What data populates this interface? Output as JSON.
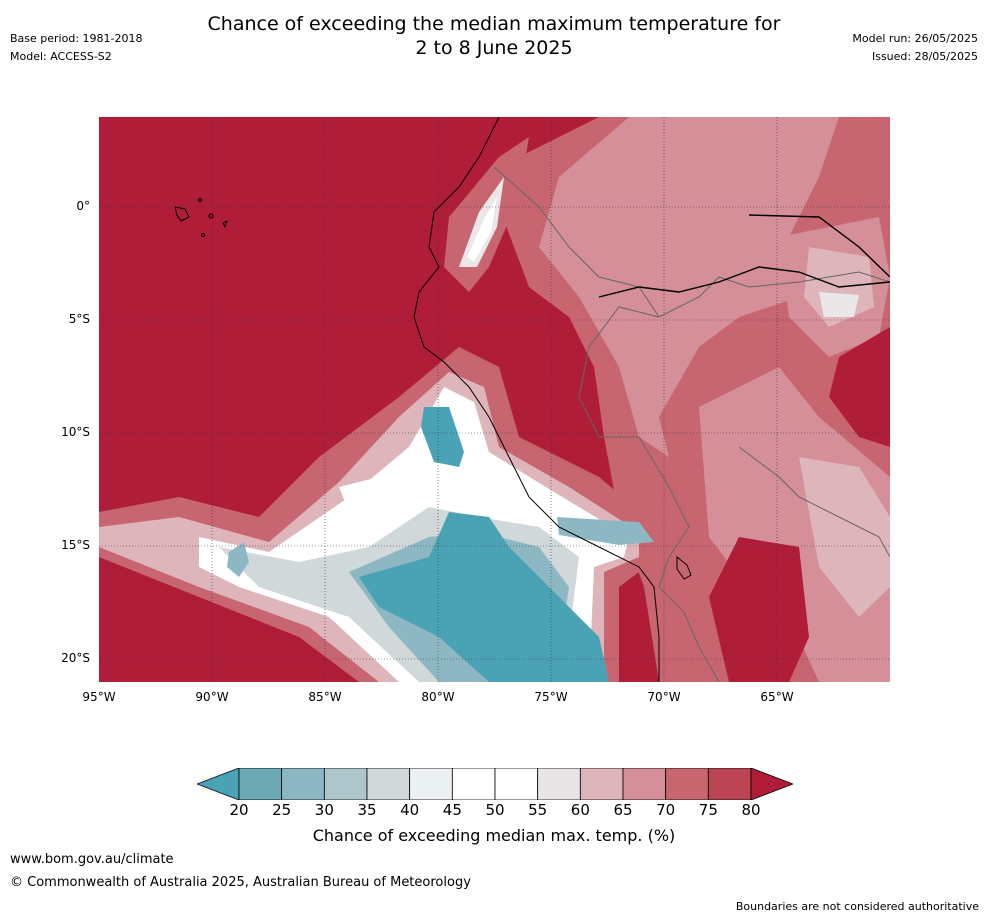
{
  "title_line1": "Chance of exceeding the median maximum temperature for",
  "title_line2": "2 to 8 June 2025",
  "base_period": "Base period: 1981-2018",
  "model": "Model: ACCESS-S2",
  "model_run": "Model run: 26/05/2025",
  "issued": "Issued: 28/05/2025",
  "lat_labels": [
    "0°",
    "5°S",
    "10°S",
    "15°S",
    "20°S"
  ],
  "lon_labels": [
    "95°W",
    "90°W",
    "85°W",
    "80°W",
    "75°W",
    "70°W",
    "65°W"
  ],
  "colorbar": {
    "ticks": [
      "20",
      "25",
      "30",
      "35",
      "40",
      "45",
      "50",
      "55",
      "60",
      "65",
      "70",
      "75",
      "80"
    ],
    "colors": [
      "#4aa3b4",
      "#6ba9b5",
      "#8db8c3",
      "#adc6cb",
      "#d0d8da",
      "#ebf0f1",
      "#ffffff",
      "#ffffff",
      "#e8e5e6",
      "#dfb5bc",
      "#d48f98",
      "#c76670",
      "#bc4555",
      "#b01d39"
    ],
    "title": "Chance of exceeding median max. temp. (%)"
  },
  "footer_url": "www.bom.gov.au/climate",
  "copyright": "© Commonwealth of Australia 2025, Australian Bureau of Meteorology",
  "disclaimer": "Boundaries are not considered authoritative"
}
